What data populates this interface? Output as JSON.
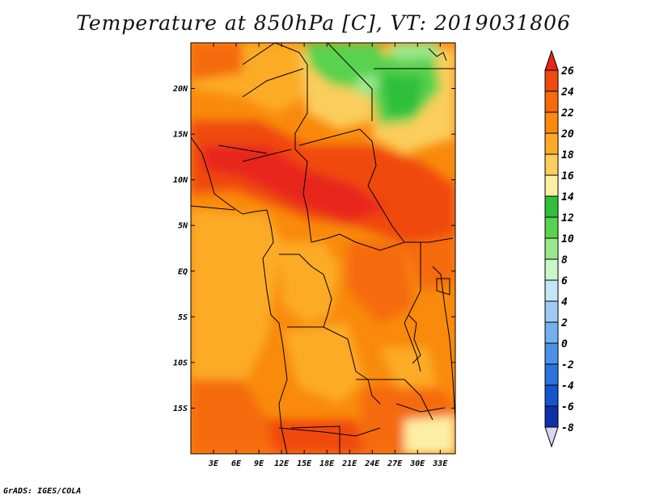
{
  "title": "Temperature at 850hPa [C], VT: 2019031806",
  "credit": "GrADS: IGES/COLA",
  "map": {
    "lon_range": [
      0,
      35
    ],
    "lat_range": [
      -20,
      25
    ],
    "lon_ticks": [
      {
        "value": 3,
        "label": "3E"
      },
      {
        "value": 6,
        "label": "6E"
      },
      {
        "value": 9,
        "label": "9E"
      },
      {
        "value": 12,
        "label": "12E"
      },
      {
        "value": 15,
        "label": "15E"
      },
      {
        "value": 18,
        "label": "18E"
      },
      {
        "value": 21,
        "label": "21E"
      },
      {
        "value": 24,
        "label": "24E"
      },
      {
        "value": 27,
        "label": "27E"
      },
      {
        "value": 30,
        "label": "30E"
      },
      {
        "value": 33,
        "label": "33E"
      }
    ],
    "lat_ticks": [
      {
        "value": 20,
        "label": "20N"
      },
      {
        "value": 15,
        "label": "15N"
      },
      {
        "value": 10,
        "label": "10N"
      },
      {
        "value": 5,
        "label": "5N"
      },
      {
        "value": 0,
        "label": "EQ"
      },
      {
        "value": -5,
        "label": "5S"
      },
      {
        "value": -10,
        "label": "10S"
      },
      {
        "value": -15,
        "label": "15S"
      }
    ]
  },
  "colorbar": {
    "levels": [
      26,
      24,
      22,
      20,
      18,
      16,
      14,
      12,
      10,
      8,
      6,
      4,
      2,
      0,
      -2,
      -4,
      -6,
      -8
    ],
    "labels": [
      "26",
      "24",
      "22",
      "20",
      "18",
      "16",
      "14",
      "12",
      "10",
      "8",
      "6",
      "4",
      "2",
      "0",
      "-2",
      "-4",
      "-6",
      "-8"
    ],
    "colors": [
      "#e8271b",
      "#f04a0f",
      "#f56a0a",
      "#f98a0c",
      "#fcab26",
      "#fbcd5c",
      "#fcefa5",
      "#2fbf3a",
      "#59d24f",
      "#9ae88b",
      "#c9f6cb",
      "#c8e4f7",
      "#9fcbf3",
      "#74b0ee",
      "#4b91e6",
      "#2a74dc",
      "#1554cc",
      "#0b30a8",
      "#080f6d"
    ]
  }
}
